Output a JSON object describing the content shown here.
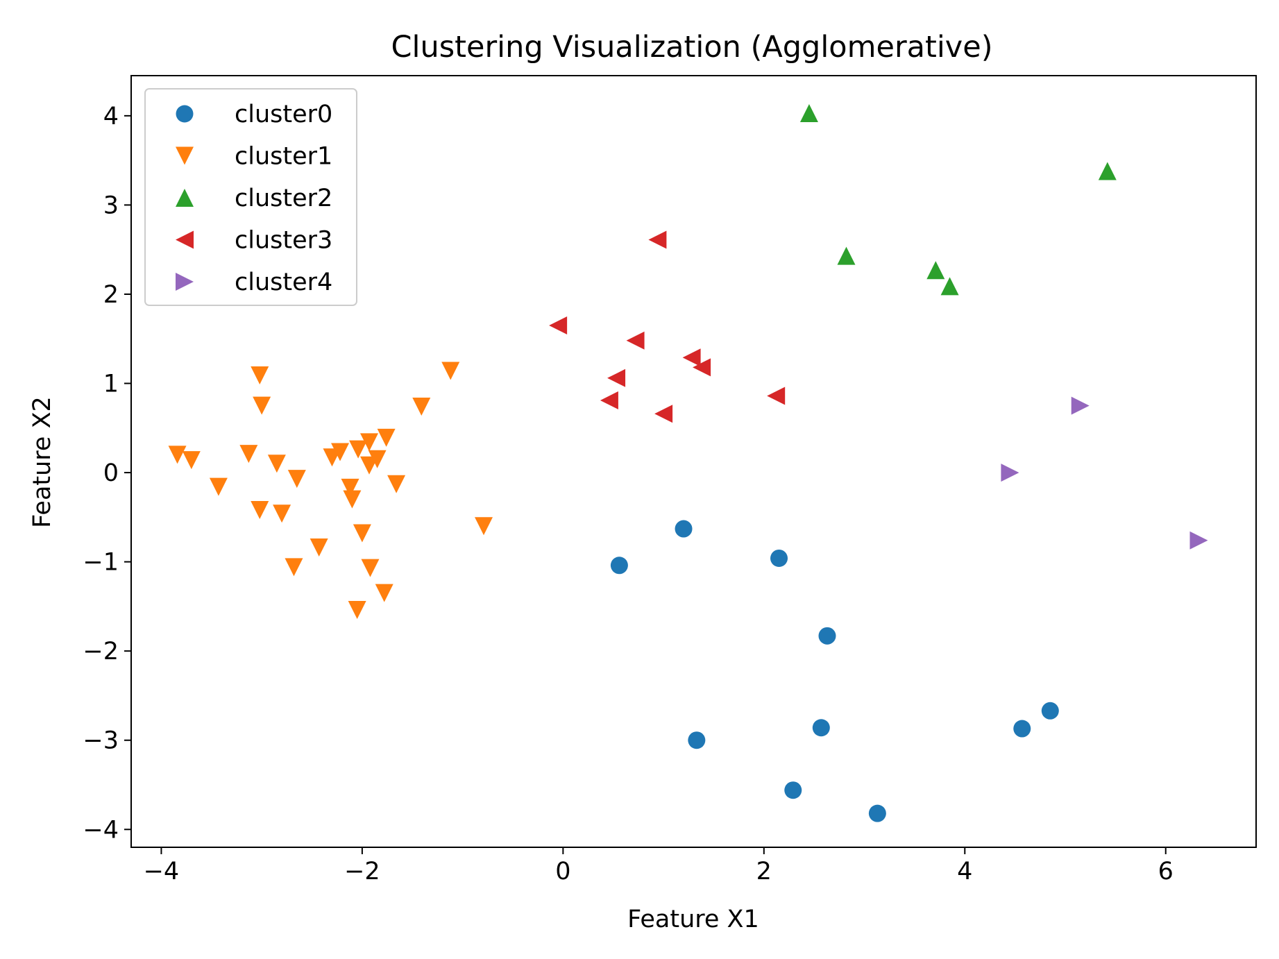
{
  "chart_data": {
    "type": "scatter",
    "title": "Clustering Visualization (Agglomerative)",
    "xlabel": "Feature X1",
    "ylabel": "Feature X2",
    "xlim": [
      -4.3,
      6.9
    ],
    "ylim": [
      -4.2,
      4.45
    ],
    "xticks": [
      -4,
      -2,
      0,
      2,
      4,
      6
    ],
    "yticks": [
      -4,
      -3,
      -2,
      -1,
      0,
      1,
      2,
      3,
      4
    ],
    "xtick_labels": [
      "−4",
      "−2",
      "0",
      "2",
      "4",
      "6"
    ],
    "ytick_labels": [
      "−4",
      "−3",
      "−2",
      "−1",
      "0",
      "1",
      "2",
      "3",
      "4"
    ],
    "grid": false,
    "legend_position": "upper-left",
    "series": [
      {
        "name": "cluster0",
        "marker": "circle",
        "color": "#1f77b4",
        "points": [
          [
            0.56,
            -1.04
          ],
          [
            1.2,
            -0.63
          ],
          [
            2.15,
            -0.96
          ],
          [
            2.63,
            -1.83
          ],
          [
            1.33,
            -3.0
          ],
          [
            2.57,
            -2.86
          ],
          [
            2.29,
            -3.56
          ],
          [
            3.13,
            -3.82
          ],
          [
            4.57,
            -2.87
          ],
          [
            4.85,
            -2.67
          ]
        ]
      },
      {
        "name": "cluster1",
        "marker": "triangle-down",
        "color": "#ff7f0e",
        "points": [
          [
            -3.84,
            0.2
          ],
          [
            -3.7,
            0.14
          ],
          [
            -3.43,
            -0.16
          ],
          [
            -3.13,
            0.21
          ],
          [
            -3.02,
            1.09
          ],
          [
            -3.0,
            0.75
          ],
          [
            -3.02,
            -0.42
          ],
          [
            -2.85,
            0.1
          ],
          [
            -2.8,
            -0.46
          ],
          [
            -2.65,
            -0.07
          ],
          [
            -2.68,
            -1.06
          ],
          [
            -2.43,
            -0.84
          ],
          [
            -2.3,
            0.17
          ],
          [
            -2.22,
            0.23
          ],
          [
            -2.12,
            -0.17
          ],
          [
            -2.1,
            -0.3
          ],
          [
            -2.04,
            0.26
          ],
          [
            -2.0,
            -0.68
          ],
          [
            -1.93,
            0.34
          ],
          [
            -1.93,
            0.08
          ],
          [
            -1.85,
            0.15
          ],
          [
            -1.76,
            0.39
          ],
          [
            -1.92,
            -1.07
          ],
          [
            -1.78,
            -1.35
          ],
          [
            -2.05,
            -1.54
          ],
          [
            -1.66,
            -0.13
          ],
          [
            -1.41,
            0.74
          ],
          [
            -1.12,
            1.14
          ],
          [
            -0.79,
            -0.6
          ]
        ]
      },
      {
        "name": "cluster2",
        "marker": "triangle-up",
        "color": "#2ca02c",
        "points": [
          [
            2.45,
            4.03
          ],
          [
            2.82,
            2.43
          ],
          [
            3.71,
            2.27
          ],
          [
            3.85,
            2.09
          ],
          [
            5.42,
            3.38
          ]
        ]
      },
      {
        "name": "cluster3",
        "marker": "triangle-left",
        "color": "#d62728",
        "points": [
          [
            0.94,
            2.61
          ],
          [
            -0.05,
            1.65
          ],
          [
            0.72,
            1.48
          ],
          [
            1.28,
            1.29
          ],
          [
            1.38,
            1.18
          ],
          [
            0.53,
            1.06
          ],
          [
            0.46,
            0.81
          ],
          [
            1.0,
            0.66
          ],
          [
            2.12,
            0.86
          ]
        ]
      },
      {
        "name": "cluster4",
        "marker": "triangle-right",
        "color": "#9467bd",
        "points": [
          [
            4.45,
            0.0
          ],
          [
            5.15,
            0.75
          ],
          [
            6.33,
            -0.76
          ]
        ]
      }
    ]
  }
}
